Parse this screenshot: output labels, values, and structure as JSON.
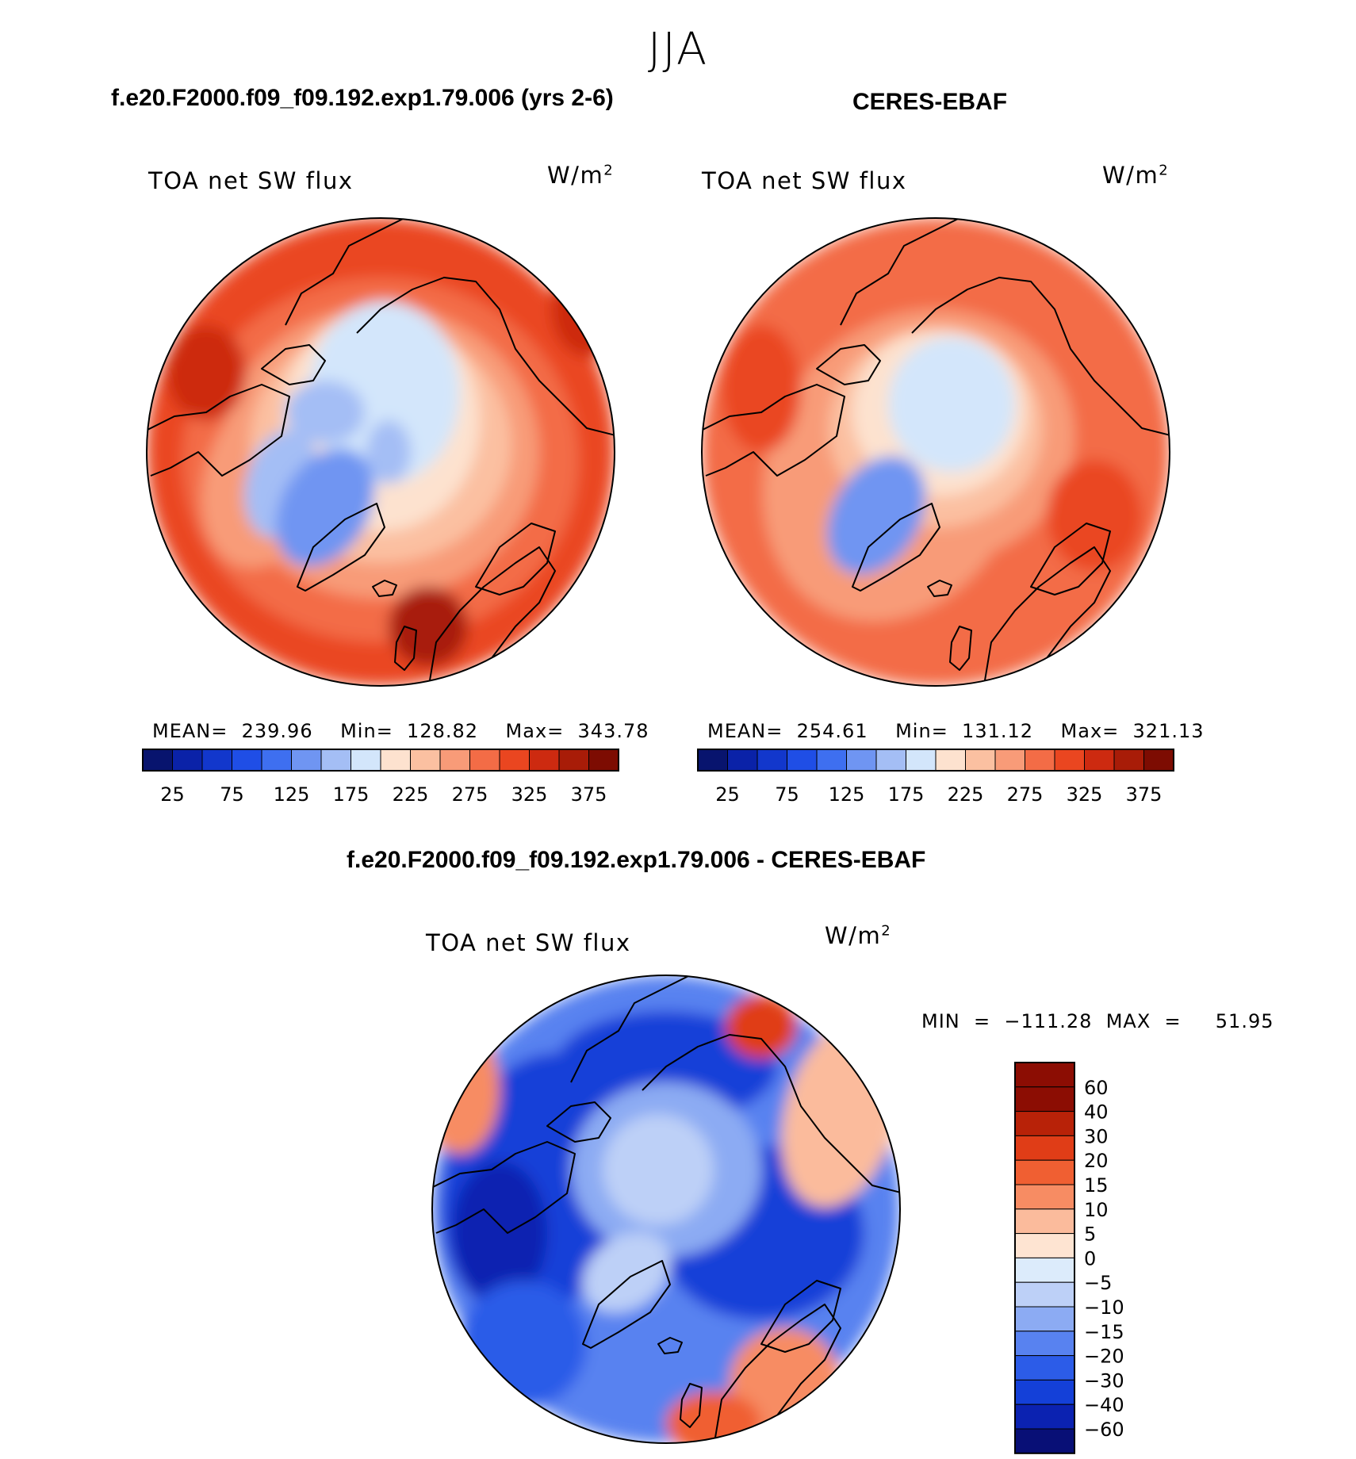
{
  "figure": {
    "title": "JJA",
    "left_title": "f.e20.F2000.f09_f09.192.exp1.79.006 (yrs 2-6)",
    "right_title": "CERES-EBAF",
    "diff_title": "f.e20.F2000.f09_f09.192.exp1.79.006 - CERES-EBAF"
  },
  "panels": {
    "left": {
      "variable": "TOA net SW flux",
      "units_base": "W/m",
      "units_exp": "2",
      "stats": "MEAN=  239.96    Min=  128.82    Max=  343.78"
    },
    "right": {
      "variable": "TOA net SW flux",
      "units_base": "W/m",
      "units_exp": "2",
      "stats": "MEAN=  254.61    Min=  131.12    Max=  321.13"
    },
    "diff": {
      "variable": "TOA net SW flux",
      "units_base": "W/m",
      "units_exp": "2",
      "stats": "MIN  =  −111.28  MAX  =     51.95"
    }
  },
  "colors": {
    "abs_scale": [
      "#08146e",
      "#0a22a8",
      "#1237cc",
      "#1f4ee6",
      "#3e6ff0",
      "#6f95f2",
      "#a4bef5",
      "#d3e6fb",
      "#fde2cf",
      "#fbc0a1",
      "#f89b78",
      "#f36c46",
      "#ea4620",
      "#cd2a10",
      "#a81c08",
      "#7d0c02"
    ],
    "diff_scale": [
      "#080f76",
      "#0b22b1",
      "#1440d8",
      "#2c5ce8",
      "#5882f0",
      "#8cabf3",
      "#bdd0f7",
      "#dcebfb",
      "#fee4d2",
      "#fbbb9c",
      "#f78c63",
      "#f05f32",
      "#e03d17",
      "#b82208",
      "#8c0d03"
    ]
  },
  "chart_data": [
    {
      "type": "map",
      "projection": "north-polar-stereographic",
      "title": "f.e20.F2000.f09_f09.192.exp1.79.006 (yrs 2-6)",
      "variable": "TOA net SW flux",
      "units": "W/m2",
      "mean": 239.96,
      "min": 128.82,
      "max": 343.78,
      "colorbar_levels": [
        0,
        25,
        50,
        75,
        100,
        125,
        150,
        175,
        200,
        225,
        250,
        275,
        300,
        325,
        350,
        375
      ],
      "colorbar_tick_labels": [
        "25",
        "75",
        "125",
        "175",
        "225",
        "275",
        "325",
        "375"
      ]
    },
    {
      "type": "map",
      "projection": "north-polar-stereographic",
      "title": "CERES-EBAF",
      "variable": "TOA net SW flux",
      "units": "W/m2",
      "mean": 254.61,
      "min": 131.12,
      "max": 321.13,
      "colorbar_levels": [
        0,
        25,
        50,
        75,
        100,
        125,
        150,
        175,
        200,
        225,
        250,
        275,
        300,
        325,
        350,
        375
      ],
      "colorbar_tick_labels": [
        "25",
        "75",
        "125",
        "175",
        "225",
        "275",
        "325",
        "375"
      ]
    },
    {
      "type": "map",
      "projection": "north-polar-stereographic",
      "title": "f.e20.F2000.f09_f09.192.exp1.79.006 - CERES-EBAF",
      "variable": "TOA net SW flux",
      "units": "W/m2",
      "min": -111.28,
      "max": 51.95,
      "colorbar_levels": [
        -60,
        -40,
        -30,
        -20,
        -15,
        -10,
        -5,
        0,
        5,
        10,
        15,
        20,
        30,
        40,
        60
      ],
      "colorbar_tick_labels": [
        "60",
        "40",
        "30",
        "20",
        "15",
        "10",
        "5",
        "0",
        "−5",
        "−10",
        "−15",
        "−20",
        "−30",
        "−40",
        "−60"
      ]
    }
  ]
}
